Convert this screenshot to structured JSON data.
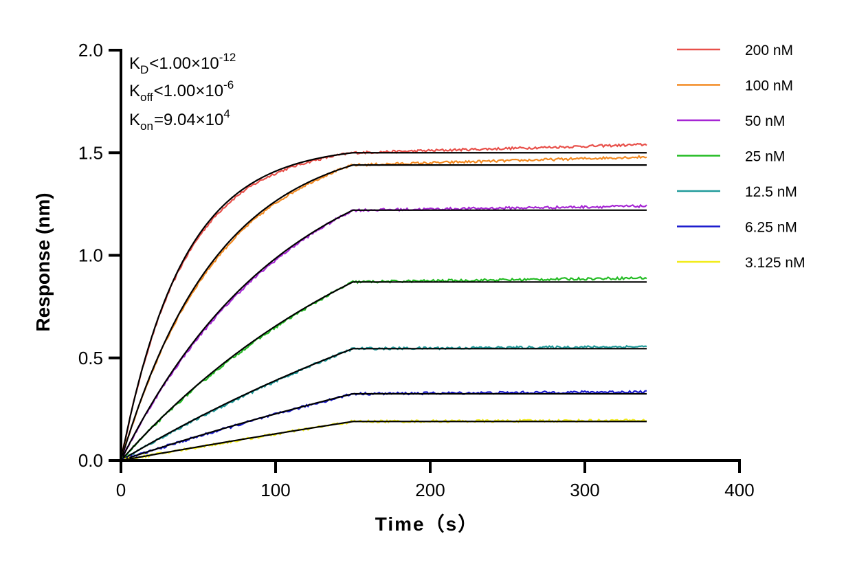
{
  "chart_data": {
    "type": "line",
    "xlabel": "Time（s）",
    "ylabel": "Response (nm)",
    "xlim": [
      0,
      400
    ],
    "ylim": [
      0,
      2.0
    ],
    "xticks": [
      "0",
      "100",
      "200",
      "300",
      "400"
    ],
    "yticks": [
      "0.0",
      "0.5",
      "1.0",
      "1.5",
      "2.0"
    ],
    "grid": false,
    "legend_position": "right",
    "association_end": 150,
    "x_end": 340,
    "fit_color": "#000000",
    "series": [
      {
        "name": "200 nM",
        "color": "#e8504a",
        "plateau": 1.5,
        "k": 0.025,
        "drift": 0.04
      },
      {
        "name": "100 nM",
        "color": "#f28a22",
        "plateau": 1.44,
        "k": 0.016,
        "drift": 0.04
      },
      {
        "name": "50 nM",
        "color": "#a626d4",
        "plateau": 1.22,
        "k": 0.0095,
        "drift": 0.02
      },
      {
        "name": "25 nM",
        "color": "#22bb22",
        "plateau": 0.87,
        "k": 0.0055,
        "drift": 0.02
      },
      {
        "name": "12.5 nM",
        "color": "#209b9b",
        "plateau": 0.545,
        "k": 0.003,
        "drift": 0.01
      },
      {
        "name": "6.25 nM",
        "color": "#1a1acd",
        "plateau": 0.325,
        "k": 0.002,
        "drift": 0.01
      },
      {
        "name": "3.125 nM",
        "color": "#f2ec1a",
        "plateau": 0.19,
        "k": 0.001,
        "drift": 0.005
      }
    ],
    "annotations": {
      "kd": {
        "sym": "K",
        "sub": "D",
        "op": "<",
        "mant": "1.00×10",
        "exp": "-12"
      },
      "koff": {
        "sym": "K",
        "sub": "off",
        "op": "<",
        "mant": "1.00×10",
        "exp": "-6"
      },
      "kon": {
        "sym": "K",
        "sub": "on",
        "op": "=",
        "mant": "9.04×10",
        "exp": "4"
      }
    }
  }
}
